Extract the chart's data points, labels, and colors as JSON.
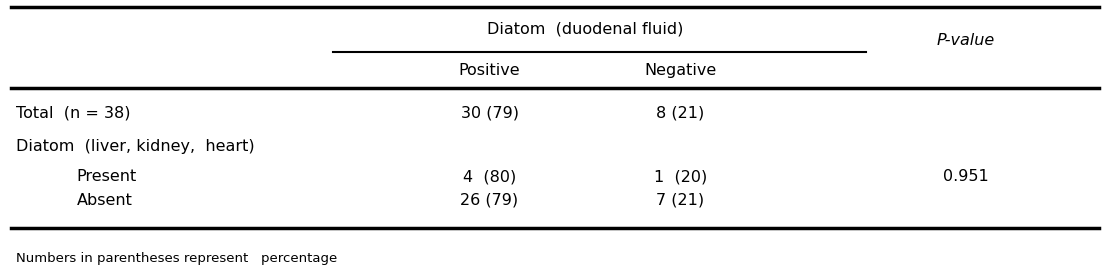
{
  "header_main": "Diatom  (duodenal fluid)",
  "header_pos": "Positive",
  "header_neg": "Negative",
  "header_pval": "P-value",
  "rows": [
    {
      "label": "Total  (n = 38)",
      "indent": 0,
      "bold": false,
      "positive": "30 (79)",
      "negative": "8 (21)",
      "pvalue": ""
    },
    {
      "label": "Diatom  (liver, kidney,  heart)",
      "indent": 0,
      "bold": false,
      "positive": "",
      "negative": "",
      "pvalue": ""
    },
    {
      "label": "Present",
      "indent": 1,
      "bold": false,
      "positive": "4  (80)",
      "negative": "1  (20)",
      "pvalue": "0.951"
    },
    {
      "label": "Absent",
      "indent": 1,
      "bold": false,
      "positive": "26 (79)",
      "negative": "7 (21)",
      "pvalue": ""
    }
  ],
  "footnote": "Numbers in parentheses represent   percentage",
  "bg_color": "#ffffff",
  "text_color": "#000000",
  "font_size": 11.5,
  "footnote_font_size": 9.5,
  "fig_width": 11.1,
  "fig_height": 2.76,
  "dpi": 100
}
